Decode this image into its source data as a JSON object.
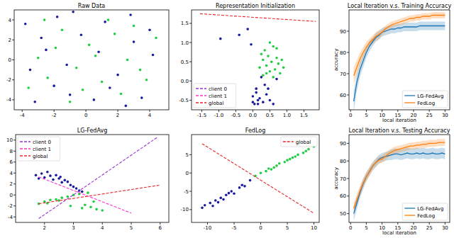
{
  "chart_data": [
    {
      "type": "scatter",
      "title": "Raw Data",
      "xlim": [
        -4.5,
        5.2
      ],
      "ylim": [
        -5,
        5
      ],
      "xticks": [
        -4,
        -2,
        0,
        2,
        4
      ],
      "yticks": [
        -4,
        -2,
        0,
        2,
        4
      ],
      "grid": false,
      "series": [
        {
          "color": "#1a1a9e",
          "marker": "circle",
          "x": [
            -3.8,
            -3.2,
            -2.5,
            -1.8,
            -1.0,
            -0.3,
            0.5,
            1.2,
            2.0,
            2.8,
            3.5,
            4.2,
            -3.5,
            -2.0,
            -0.8,
            0.8,
            2.5,
            4.0,
            -2.8,
            1.5,
            3.0,
            -1.2
          ],
          "values": [
            3.6,
            -4.2,
            1.0,
            4.3,
            -3.5,
            2.5,
            -4.0,
            3.8,
            -1.5,
            4.5,
            -3.8,
            0.5,
            -1.0,
            -2.6,
            4.8,
            0.8,
            -4.6,
            3.0,
            2.2,
            -2.8,
            1.8,
            -0.5
          ]
        },
        {
          "color": "#22cc44",
          "marker": "circle",
          "x": [
            -3.0,
            -2.4,
            -1.5,
            -0.6,
            0.2,
            1.0,
            1.8,
            2.6,
            3.4,
            4.4,
            -3.6,
            -1.9,
            -0.2,
            1.4,
            3.0,
            -2.6,
            0.6,
            2.2,
            3.8,
            -1.0
          ],
          "values": [
            0.2,
            -1.8,
            3.0,
            -0.8,
            1.5,
            -2.2,
            2.6,
            0.0,
            -1.0,
            2.2,
            -2.8,
            1.2,
            -3.0,
            4.0,
            3.4,
            4.0,
            0.4,
            -3.4,
            -2.0,
            -4.2
          ]
        }
      ]
    },
    {
      "type": "scatter",
      "title": "Representation Initialization",
      "xlim": [
        -1.8,
        1.95
      ],
      "ylim": [
        -0.75,
        1.85
      ],
      "xticks": [
        -1.5,
        {
          "value": -1.0,
          "label": "-1.0"
        },
        -0.5,
        {
          "value": 0.0,
          "label": "0.0"
        },
        0.5,
        {
          "value": 1.0,
          "label": "1.0"
        },
        1.5
      ],
      "yticks": [
        -0.5,
        {
          "value": 0.0,
          "label": "0.0"
        },
        0.5,
        {
          "value": 1.0,
          "label": "1.0"
        },
        1.5
      ],
      "grid": false,
      "legend": "lower left",
      "series": [
        {
          "color": "#1a1a9e",
          "marker": "circle",
          "x": [
            -0.95,
            -0.4,
            -0.15,
            -0.05,
            0.0,
            0.05,
            0.1,
            0.15,
            0.2,
            0.3,
            0.4,
            0.5,
            0.6,
            0.1,
            0.25,
            0.35,
            0.45,
            0.0,
            0.15,
            0.7
          ],
          "values": [
            1.1,
            1.2,
            1.35,
            0.95,
            -0.4,
            -0.6,
            -0.3,
            -0.5,
            -0.45,
            -0.55,
            -0.35,
            -0.5,
            -0.6,
            -0.2,
            0.1,
            -0.1,
            -0.2,
            -0.55,
            -0.6,
            0.05
          ]
        },
        {
          "color": "#22cc44",
          "marker": "circle",
          "x": [
            0.2,
            0.3,
            0.35,
            0.4,
            0.45,
            0.5,
            0.55,
            0.6,
            0.65,
            0.7,
            0.75,
            0.8,
            0.9,
            0.3,
            0.5,
            0.6,
            0.4,
            0.85,
            0.25,
            0.7
          ],
          "values": [
            0.35,
            0.55,
            0.8,
            0.4,
            0.65,
            0.25,
            0.5,
            0.9,
            0.3,
            0.6,
            0.45,
            0.2,
            0.35,
            0.15,
            1.0,
            0.1,
            0.2,
            0.55,
            0.7,
            0.85
          ]
        },
        {
          "name": "client 0",
          "type": "line",
          "line_style": "dashed",
          "color": "#9b30d9",
          "x": [],
          "values": []
        },
        {
          "name": "client 1",
          "type": "line",
          "line_style": "dashed",
          "color": "#ff33cc",
          "x": [],
          "values": []
        },
        {
          "name": "global",
          "type": "line",
          "line_style": "dashed",
          "color": "#e8262b",
          "x": [
            -1.55,
            1.85
          ],
          "values": [
            1.75,
            1.55
          ]
        }
      ]
    },
    {
      "type": "line",
      "title": "Local Iteration v.s. Training Accuracy",
      "x_label": "local iteration",
      "y_label": "accuracy",
      "xlim": [
        -0.5,
        31.5
      ],
      "ylim": [
        53,
        100
      ],
      "xticks": [
        0,
        5,
        10,
        15,
        20,
        25,
        30
      ],
      "yticks": [
        60,
        70,
        80,
        90
      ],
      "grid": false,
      "legend": "lower right",
      "x": [
        1,
        2,
        3,
        4,
        5,
        6,
        7,
        8,
        9,
        10,
        11,
        12,
        13,
        14,
        15,
        16,
        17,
        18,
        19,
        20,
        21,
        22,
        23,
        24,
        25,
        26,
        27,
        28,
        29,
        30
      ],
      "series": [
        {
          "name": "LG-FedAvg",
          "color": "#1f77b4",
          "values": [
            57,
            66,
            72,
            76,
            80,
            83,
            85,
            87,
            88,
            89.5,
            90,
            90.5,
            91,
            91,
            91.5,
            91.5,
            92,
            92,
            92,
            92,
            92,
            92.5,
            92.5,
            92.5,
            92.5,
            92.5,
            92.5,
            92.5,
            92.5,
            92.5
          ],
          "error": [
            5,
            4,
            3.5,
            3,
            2.5,
            2.5,
            2,
            2,
            2,
            2,
            2,
            2,
            2,
            2,
            2,
            2,
            2,
            2,
            2,
            2,
            2,
            2,
            2,
            2,
            2,
            2,
            2,
            2,
            2,
            2
          ]
        },
        {
          "name": "FedLog",
          "color": "#ff7f0e",
          "values": [
            69,
            73,
            77,
            80,
            82.5,
            84.5,
            86,
            87.5,
            88.5,
            89.5,
            91,
            92,
            93,
            93.5,
            94,
            94.5,
            95,
            95.5,
            96,
            96,
            96.5,
            96.5,
            97,
            97,
            97,
            97.5,
            97.5,
            97.5,
            97.5,
            97.5
          ],
          "error": [
            4,
            3.5,
            3,
            2.5,
            2.5,
            2,
            2,
            2,
            2,
            1.5,
            1.5,
            1.5,
            1.5,
            1.5,
            1.5,
            1.5,
            1.5,
            1.5,
            1.5,
            1.5,
            1.5,
            1.5,
            1.5,
            1.5,
            1.5,
            1.5,
            1.5,
            1.5,
            1.5,
            1.5
          ]
        }
      ]
    },
    {
      "type": "scatter",
      "title": "LG-FedAvg",
      "xlim": [
        1.0,
        6.3
      ],
      "ylim": [
        -5,
        11
      ],
      "xticks": [
        2,
        3,
        4,
        5,
        6
      ],
      "yticks": [
        -4,
        -2,
        0,
        2,
        4,
        6,
        8,
        10
      ],
      "grid": false,
      "legend": "upper left",
      "series": [
        {
          "color": "#1a1a9e",
          "marker": "circle",
          "x": [
            1.7,
            1.9,
            2.0,
            2.2,
            2.3,
            2.5,
            2.6,
            2.8,
            2.9,
            3.0,
            3.1,
            3.2,
            2.1,
            2.4,
            2.7,
            3.3,
            1.8,
            2.55
          ],
          "values": [
            3.6,
            3.9,
            3.2,
            3.5,
            2.8,
            3.0,
            2.3,
            2.4,
            1.8,
            1.5,
            1.2,
            0.8,
            4.2,
            3.6,
            2.7,
            0.6,
            3.0,
            3.3
          ]
        },
        {
          "color": "#22cc44",
          "marker": "circle",
          "x": [
            1.8,
            2.0,
            2.2,
            2.4,
            2.6,
            2.8,
            3.0,
            3.2,
            3.4,
            3.6,
            3.8,
            2.1,
            2.5,
            2.9,
            3.3,
            3.7,
            4.0,
            3.5
          ],
          "values": [
            -1.6,
            -1.2,
            -0.9,
            -0.8,
            -0.5,
            -0.3,
            0.0,
            0.2,
            -1.8,
            -2.2,
            -2.6,
            -1.5,
            -1.0,
            -2.0,
            -2.4,
            -1.2,
            -2.8,
            0.4
          ]
        },
        {
          "name": "client 0",
          "type": "line",
          "line_style": "dashed",
          "color": "#9b30d9",
          "x": [
            1.8,
            5.9
          ],
          "values": [
            -4.3,
            10.5
          ]
        },
        {
          "name": "client 1",
          "type": "line",
          "line_style": "dashed",
          "color": "#ff33cc",
          "x": [
            1.8,
            5.0
          ],
          "values": [
            3.3,
            -3.3
          ]
        },
        {
          "name": "global",
          "type": "line",
          "line_style": "dashed",
          "color": "#e8262b",
          "x": [
            1.8,
            6.0
          ],
          "values": [
            -1.6,
            1.8
          ]
        }
      ]
    },
    {
      "type": "scatter",
      "title": "FedLog",
      "xlim": [
        -13,
        11
      ],
      "ylim": [
        -13.5,
        10.5
      ],
      "xticks": [
        -10,
        -5,
        0,
        5,
        10
      ],
      "yticks": [
        -10,
        -5,
        0,
        5
      ],
      "grid": false,
      "legend": "upper right",
      "series": [
        {
          "color": "#1a1a9e",
          "marker": "circle",
          "x": [
            -11,
            -10.5,
            -9.5,
            -9,
            -8.5,
            -7.5,
            -7,
            -6,
            -5.5,
            -5,
            -4,
            -3.5,
            -3,
            -2,
            -8,
            -6.5
          ],
          "values": [
            -9.5,
            -8.8,
            -8.2,
            -9.0,
            -7.5,
            -6.8,
            -7.2,
            -5.5,
            -5.0,
            -5.6,
            -4.0,
            -3.3,
            -3.6,
            -2.0,
            -8.0,
            -6.0
          ]
        },
        {
          "color": "#22cc44",
          "marker": "circle",
          "x": [
            -1,
            0,
            1,
            1.5,
            2.5,
            3,
            3.5,
            4.5,
            5,
            6,
            6.5,
            7,
            8,
            8.5,
            9,
            10,
            2,
            5.5
          ],
          "values": [
            -0.8,
            0.0,
            0.5,
            1.2,
            1.5,
            2.0,
            2.6,
            3.0,
            3.5,
            4.2,
            4.5,
            5.0,
            5.5,
            6.0,
            6.5,
            7.2,
            1.0,
            3.8
          ]
        },
        {
          "name": "global",
          "type": "line",
          "line_style": "dashed",
          "color": "#e8262b",
          "x": [
            -11,
            10
          ],
          "values": [
            8,
            -11
          ]
        }
      ]
    },
    {
      "type": "line",
      "title": "Local Iteration v.s. Testing Accuracy",
      "x_label": "local iteration",
      "y_label": "accuracy",
      "xlim": [
        -0.5,
        31.5
      ],
      "ylim": [
        45,
        95
      ],
      "xticks": [
        0,
        5,
        10,
        15,
        20,
        25,
        30
      ],
      "yticks": [
        50,
        60,
        70,
        80,
        90
      ],
      "grid": false,
      "legend": "lower right",
      "x": [
        1,
        2,
        3,
        4,
        5,
        6,
        7,
        8,
        9,
        10,
        11,
        12,
        13,
        14,
        15,
        16,
        17,
        18,
        19,
        20,
        21,
        22,
        23,
        24,
        25,
        26,
        27,
        28,
        29,
        30
      ],
      "series": [
        {
          "name": "LG-FedAvg",
          "color": "#1f77b4",
          "values": [
            50,
            56,
            62,
            67,
            71,
            74,
            77,
            79,
            81,
            82,
            82.5,
            83,
            83.5,
            84,
            84,
            83.5,
            84,
            84.5,
            84,
            84,
            84.5,
            84,
            84.5,
            84,
            84,
            84.5,
            84,
            84,
            84.5,
            84
          ],
          "error": [
            4,
            3.5,
            3,
            3,
            2.5,
            2.5,
            2.5,
            2.5,
            2.5,
            2.5,
            2.5,
            2.5,
            3,
            3,
            3,
            3,
            3,
            3,
            3,
            3,
            3,
            3,
            3,
            3,
            3,
            3,
            3,
            3,
            3,
            3
          ]
        },
        {
          "name": "FedLog",
          "color": "#ff7f0e",
          "values": [
            53,
            58,
            63,
            67.5,
            71,
            74,
            77,
            79,
            80.5,
            81,
            82.5,
            84,
            85,
            86,
            86.5,
            87,
            87.5,
            88,
            88.5,
            88.5,
            89,
            89,
            89.5,
            89.5,
            90,
            90,
            90,
            90.5,
            90.5,
            90.5
          ],
          "error": [
            3,
            3,
            3,
            2.5,
            2.5,
            2.5,
            2,
            2,
            2,
            2,
            2,
            2,
            2,
            2,
            2,
            2,
            2,
            2,
            2,
            2,
            2,
            2,
            2,
            2,
            2,
            2,
            2,
            2,
            2,
            2
          ]
        }
      ]
    }
  ]
}
